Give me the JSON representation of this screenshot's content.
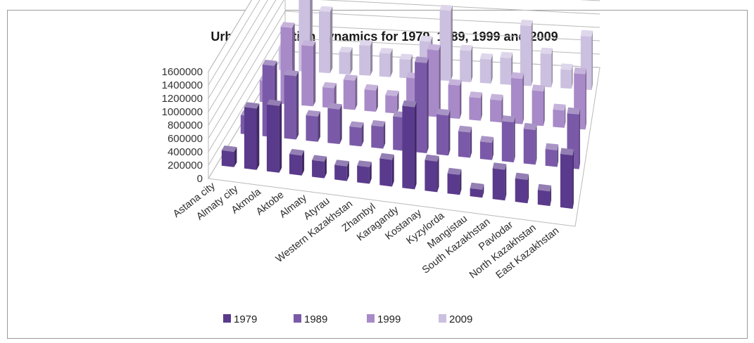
{
  "chart_data": {
    "type": "bar",
    "subtype": "3d-clustered-column",
    "title": "Urban population dynamics for 1979, 1989, 1999 and 2009",
    "categories": [
      "Astana city",
      "Almaty city",
      "Akmola",
      "Aktobe",
      "Almaty",
      "Atyrau",
      "Western Kazakhstan",
      "Zhambyl",
      "Karagandy",
      "Kostanay",
      "Kyzylorda",
      "Mangistau",
      "South Kazakhstan",
      "Pavlodar",
      "North Kazakhstan",
      "East Kazakhstan"
    ],
    "series": [
      {
        "name": "1979",
        "color": "#5a3a8c",
        "values": [
          230000,
          920000,
          1000000,
          300000,
          250000,
          220000,
          250000,
          400000,
          1230000,
          460000,
          300000,
          120000,
          460000,
          350000,
          220000,
          800000
        ]
      },
      {
        "name": "1989",
        "color": "#7a5aa8",
        "values": [
          280000,
          1070000,
          950000,
          380000,
          520000,
          280000,
          330000,
          500000,
          1350000,
          600000,
          380000,
          260000,
          600000,
          520000,
          250000,
          820000
        ]
      },
      {
        "name": "1999",
        "color": "#a88ac8",
        "values": [
          320000,
          1150000,
          900000,
          300000,
          440000,
          320000,
          260000,
          550000,
          1000000,
          500000,
          340000,
          330000,
          680000,
          520000,
          260000,
          830000
        ]
      },
      {
        "name": "2009",
        "color": "#ccc0e0",
        "values": [
          350000,
          1400000,
          920000,
          330000,
          450000,
          350000,
          280000,
          570000,
          1050000,
          470000,
          360000,
          400000,
          900000,
          500000,
          280000,
          800000
        ]
      }
    ],
    "y_ticks": [
      "1600000",
      "1400000",
      "1200000",
      "1000000",
      "800000",
      "600000",
      "400000",
      "200000",
      "0"
    ],
    "ylim": [
      0,
      1600000
    ],
    "grid": true,
    "legend_position": "bottom"
  }
}
